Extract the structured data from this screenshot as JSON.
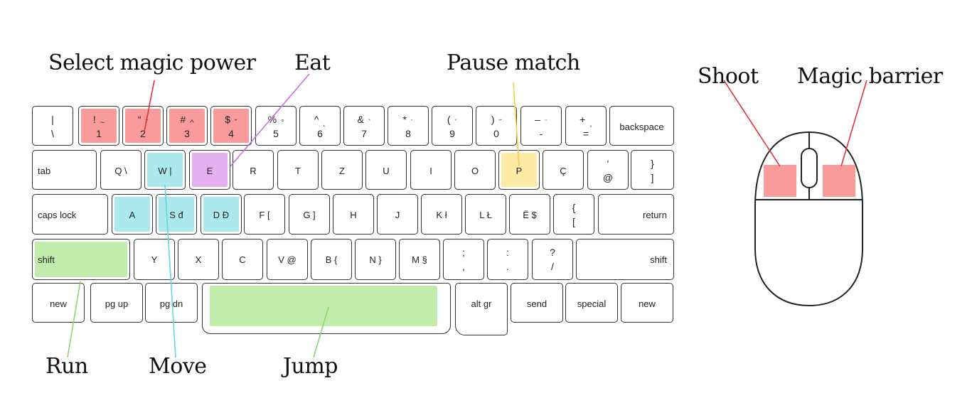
{
  "colors": {
    "red": "#f99b9b",
    "purple": "#e5b1f1",
    "cyan": "#ace9ec",
    "yellow": "#fdeba5",
    "green": "#c2ecab",
    "line_red": "#e0333a",
    "line_purple": "#c270e0",
    "line_cyan": "#62d3e0",
    "line_yellow": "#f1cf4c",
    "line_green": "#8bd86b",
    "key_border": "#333333"
  },
  "labels": {
    "select_magic": "Select magic power",
    "eat": "Eat",
    "pause": "Pause match",
    "shoot": "Shoot",
    "magic_barrier": "Magic barrier",
    "run": "Run",
    "move": "Move",
    "jump": "Jump"
  },
  "keyboard": {
    "row1": [
      {
        "top": "|",
        "bot": "\\"
      },
      {
        "top": "!",
        "acc": "~",
        "bot": "1",
        "color": "red"
      },
      {
        "top": "“",
        "acc": "ˇ",
        "bot": "2",
        "color": "red"
      },
      {
        "top": "#",
        "acc": "^",
        "bot": "3",
        "color": "red"
      },
      {
        "top": "$",
        "acc": "˘",
        "bot": "4",
        "color": "red"
      },
      {
        "top": "%",
        "acc": "°",
        "bot": "5"
      },
      {
        "top": "^",
        "acc": "˛",
        "bot": "6"
      },
      {
        "top": "&",
        "acc": "`",
        "bot": "7"
      },
      {
        "top": "*",
        "acc": "˙",
        "bot": "8"
      },
      {
        "top": "(",
        "acc": "´",
        "bot": "9"
      },
      {
        "top": ")",
        "acc": "˝",
        "bot": "0"
      },
      {
        "top": "–",
        "acc": "¨",
        "bot": "-"
      },
      {
        "top": "+",
        "acc": "¸",
        "bot": "="
      },
      {
        "mid": "backspace"
      }
    ],
    "row2": [
      {
        "mid": "tab",
        "align": "left"
      },
      {
        "mid": "Q \\"
      },
      {
        "mid": "W |",
        "color": "cyan"
      },
      {
        "mid": "E",
        "color": "purple"
      },
      {
        "mid": "R"
      },
      {
        "mid": "T"
      },
      {
        "mid": "Z"
      },
      {
        "mid": "U"
      },
      {
        "mid": "I"
      },
      {
        "mid": "O"
      },
      {
        "mid": "P",
        "color": "yellow"
      },
      {
        "mid": "Ç"
      },
      {
        "top": "‘",
        "bot": "@"
      },
      {
        "top": "}",
        "bot": "]"
      }
    ],
    "row3": [
      {
        "mid": "caps lock",
        "align": "left"
      },
      {
        "mid": "A",
        "color": "cyan"
      },
      {
        "mid": "S đ",
        "color": "cyan"
      },
      {
        "mid": "D Đ",
        "color": "cyan"
      },
      {
        "mid": "F ["
      },
      {
        "mid": "G ]"
      },
      {
        "mid": "H"
      },
      {
        "mid": "J"
      },
      {
        "mid": "K ł"
      },
      {
        "mid": "L Ł"
      },
      {
        "mid": "Ë $"
      },
      {
        "top": "{",
        "bot": "["
      },
      {
        "mid": "return",
        "align": "right"
      }
    ],
    "row4": [
      {
        "mid": "shift",
        "align": "left",
        "color": "green"
      },
      {
        "mid": "Y"
      },
      {
        "mid": "X"
      },
      {
        "mid": "C"
      },
      {
        "mid": "V @"
      },
      {
        "mid": "B {"
      },
      {
        "mid": "N }"
      },
      {
        "mid": "M §"
      },
      {
        "top": ";",
        "bot": ","
      },
      {
        "top": ":",
        "bot": "."
      },
      {
        "top": "?",
        "bot": "/"
      },
      {
        "mid": "shift",
        "align": "right"
      }
    ],
    "row5": [
      {
        "mid": "new"
      },
      {
        "mid": "pg up"
      },
      {
        "mid": "pg dn"
      },
      {
        "mid": "",
        "color": "green"
      },
      {
        "mid": "alt gr"
      },
      {
        "mid": "send"
      },
      {
        "mid": "special"
      },
      {
        "mid": "new"
      }
    ]
  },
  "mouse": {
    "left_button_color": "red",
    "right_button_color": "red"
  }
}
